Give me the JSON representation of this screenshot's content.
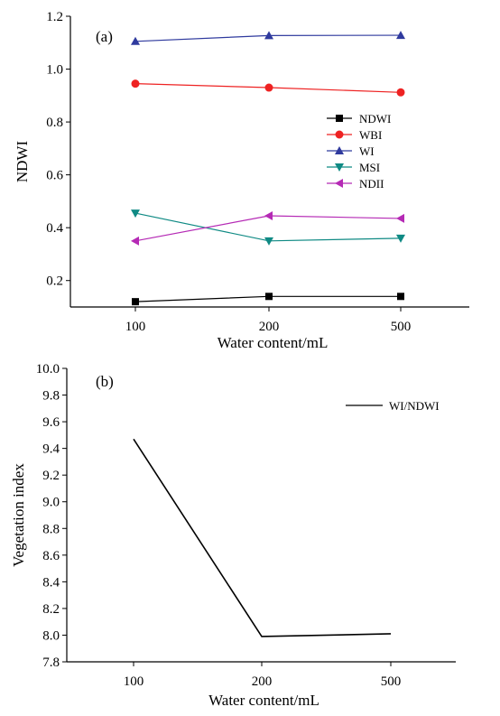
{
  "chart_data": [
    {
      "type": "line",
      "panel_label": "(a)",
      "categories": [
        "100",
        "200",
        "500"
      ],
      "xlabel": "Water content/mL",
      "ylabel": "NDWI",
      "ylim": [
        0.1,
        1.2
      ],
      "yticks": [
        "0.2",
        "0.4",
        "0.6",
        "0.8",
        "1.0",
        "1.2"
      ],
      "grid": false,
      "legend_position": "right",
      "series": [
        {
          "name": "NDWI",
          "values": [
            0.12,
            0.14,
            0.14
          ],
          "color": "#000000",
          "marker": "square"
        },
        {
          "name": "WBI",
          "values": [
            0.945,
            0.93,
            0.912
          ],
          "color": "#ee2222",
          "marker": "circle"
        },
        {
          "name": "WI",
          "values": [
            1.105,
            1.127,
            1.128
          ],
          "color": "#2f3a9e",
          "marker": "triangle-up"
        },
        {
          "name": "MSI",
          "values": [
            0.455,
            0.35,
            0.36
          ],
          "color": "#0f8a84",
          "marker": "triangle-down"
        },
        {
          "name": "NDII",
          "values": [
            0.35,
            0.445,
            0.435
          ],
          "color": "#b52ab5",
          "marker": "triangle-left"
        }
      ]
    },
    {
      "type": "line",
      "panel_label": "(b)",
      "categories": [
        "100",
        "200",
        "500"
      ],
      "xlabel": "Water content/mL",
      "ylabel": "Vegetation index",
      "ylim": [
        7.8,
        10.0
      ],
      "yticks": [
        "7.8",
        "8.0",
        "8.2",
        "8.4",
        "8.6",
        "8.8",
        "9.0",
        "9.2",
        "9.4",
        "9.6",
        "9.8",
        "10.0"
      ],
      "grid": false,
      "legend_position": "top-right",
      "series": [
        {
          "name": "WI/NDWI",
          "values": [
            9.47,
            7.99,
            8.01
          ],
          "color": "#000000",
          "marker": "none"
        }
      ]
    }
  ]
}
